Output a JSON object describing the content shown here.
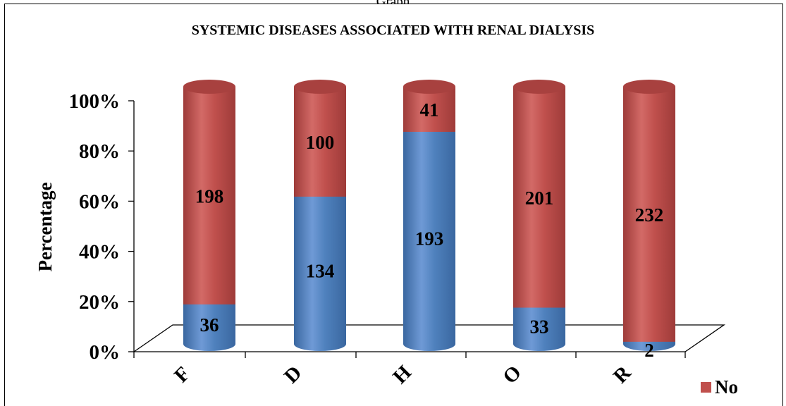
{
  "page": {
    "header_text": "Graph"
  },
  "colors": {
    "yes": "#4f81bd",
    "no": "#c0504d"
  },
  "chart_data": {
    "type": "bar",
    "stacked": "percent",
    "title": "SYSTEMIC DISEASES ASSOCIATED WITH RENAL DIALYSIS",
    "ylabel": "Percentage",
    "xlabel": "",
    "ylim": [
      0,
      100
    ],
    "yticks": [
      "0%",
      "20%",
      "40%",
      "60%",
      "80%",
      "100%"
    ],
    "categories": [
      "F",
      "D",
      "H",
      "O",
      "R"
    ],
    "series": [
      {
        "values": [
          36,
          134,
          193,
          33,
          2
        ],
        "color": "#4f81bd"
      },
      {
        "name": "No",
        "values": [
          198,
          100,
          41,
          201,
          232
        ],
        "color": "#c0504d"
      }
    ],
    "legend": {
      "position": "bottom-right",
      "entries": [
        "No"
      ]
    },
    "grid": false
  }
}
